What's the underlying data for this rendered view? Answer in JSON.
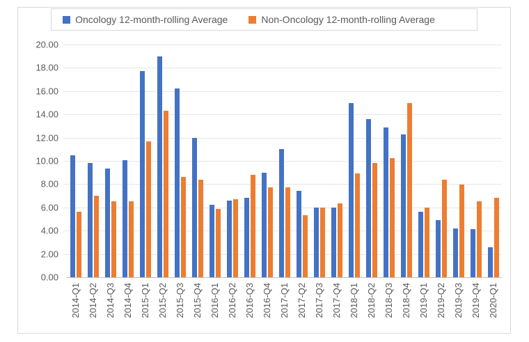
{
  "legend": {
    "items": [
      {
        "label": "Oncology 12-month-rolling Average",
        "color": "#4472C4"
      },
      {
        "label": "Non-Oncology 12-month-rolling Average",
        "color": "#ED7D31"
      }
    ]
  },
  "chart_data": {
    "type": "bar",
    "title": "",
    "categories": [
      "2014-Q1",
      "2014-Q2",
      "2014-Q3",
      "2014-Q4",
      "2015-Q1",
      "2015-Q2",
      "2015-Q3",
      "2015-Q4",
      "2016-Q1",
      "2016-Q2",
      "2016-Q3",
      "2016-Q4",
      "2017-Q1",
      "2017-Q2",
      "2017-Q3",
      "2017-Q4",
      "2018-Q1",
      "2018-Q2",
      "2018-Q3",
      "2018-Q4",
      "2019-Q1",
      "2019-Q2",
      "2019-Q3",
      "2019-Q4",
      "2020-Q1"
    ],
    "series": [
      {
        "name": "Oncology 12-month-rolling Average",
        "color": "#4472C4",
        "values": [
          10.5,
          9.8,
          9.35,
          10.05,
          17.7,
          19.0,
          16.25,
          12.0,
          6.2,
          6.6,
          6.8,
          9.0,
          11.0,
          7.45,
          6.0,
          6.0,
          15.0,
          13.6,
          12.9,
          12.3,
          5.6,
          4.9,
          4.2,
          4.15,
          2.55
        ]
      },
      {
        "name": "Non-Oncology 12-month-rolling Average",
        "color": "#ED7D31",
        "values": [
          5.6,
          7.0,
          6.5,
          6.5,
          11.65,
          14.3,
          8.6,
          8.4,
          5.85,
          6.7,
          8.8,
          7.75,
          7.7,
          5.35,
          6.0,
          6.35,
          8.9,
          9.85,
          10.25,
          15.0,
          6.0,
          8.4,
          7.95,
          6.55,
          6.8
        ]
      }
    ],
    "xlabel": "",
    "ylabel": "",
    "ylim": [
      0,
      20
    ],
    "ytick_step": 2,
    "ytick_labels": [
      "0.00",
      "2.00",
      "4.00",
      "6.00",
      "8.00",
      "10.00",
      "12.00",
      "14.00",
      "16.00",
      "18.00",
      "20.00"
    ],
    "grid": true,
    "legend_position": "top",
    "gridline_color": "#E6E6E6",
    "axis_line_color": "#BFBFBF",
    "text_color": "#595959",
    "frame_border_color": "#D9D9D9"
  }
}
